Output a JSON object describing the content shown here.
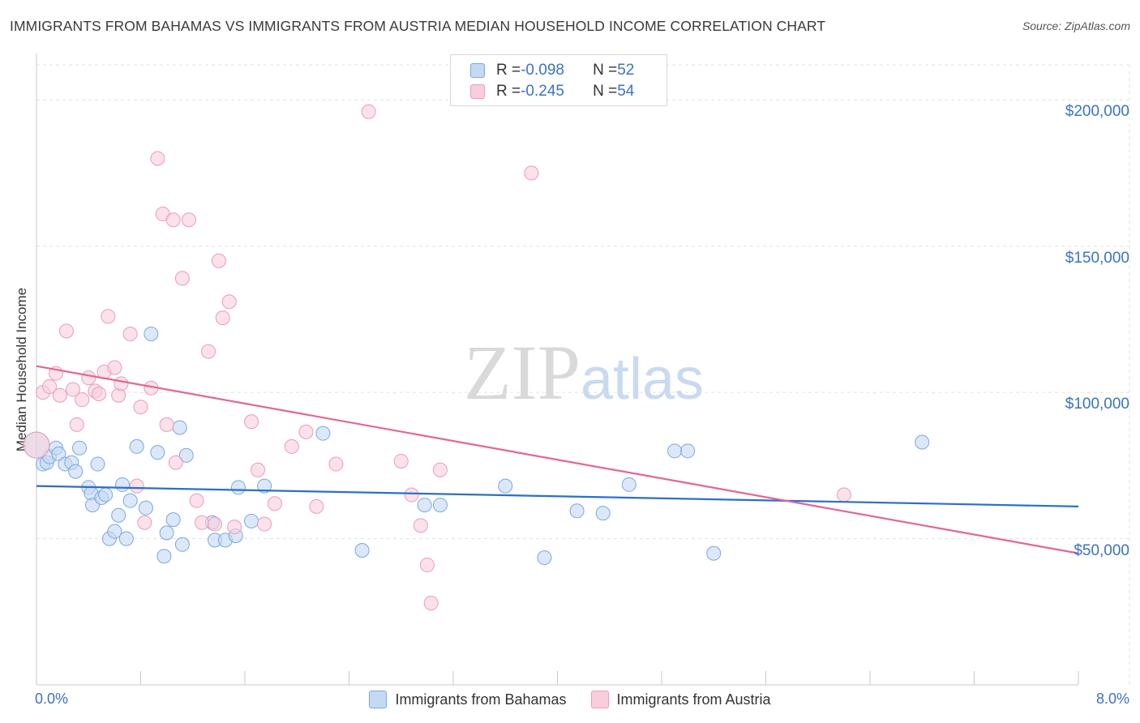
{
  "chart_data": {
    "type": "scatter",
    "title": "IMMIGRANTS FROM BAHAMAS VS IMMIGRANTS FROM AUSTRIA MEDIAN HOUSEHOLD INCOME CORRELATION CHART",
    "source": "Source: ZipAtlas.com",
    "xlabel": "",
    "ylabel": "Median Household Income",
    "xlim": [
      0,
      8
    ],
    "ylim": [
      0,
      212000
    ],
    "x_tick_labels": [
      "0.0%",
      "8.0%"
    ],
    "y_ticks": [
      {
        "value": 50000,
        "label": "$50,000"
      },
      {
        "value": 100000,
        "label": "$100,000"
      },
      {
        "value": 150000,
        "label": "$150,000"
      },
      {
        "value": 200000,
        "label": "$200,000"
      }
    ],
    "grid": true,
    "watermark": "ZIPatlas",
    "legend_stats": [
      {
        "r_label": "R = ",
        "r_value": "-0.098",
        "n_label": "N = ",
        "n_value": "52"
      },
      {
        "r_label": "R = ",
        "r_value": "-0.245",
        "n_label": "N = ",
        "n_value": "54"
      }
    ],
    "series": [
      {
        "name": "Immigrants from Bahamas",
        "color": "#7aa7e0",
        "fill": "#c5d9f3",
        "line_color": "#2a6fcc",
        "trend": {
          "x": [
            0,
            8
          ],
          "y": [
            68000,
            61000
          ]
        },
        "points": [
          [
            0.05,
            75500
          ],
          [
            0.08,
            76000
          ],
          [
            0.1,
            78000
          ],
          [
            0.15,
            81000
          ],
          [
            0.17,
            79000
          ],
          [
            0.22,
            75500
          ],
          [
            0.27,
            76000
          ],
          [
            0.3,
            73000
          ],
          [
            0.33,
            81000
          ],
          [
            0.4,
            67500
          ],
          [
            0.42,
            65500
          ],
          [
            0.43,
            61500
          ],
          [
            0.47,
            75500
          ],
          [
            0.5,
            64000
          ],
          [
            0.53,
            65000
          ],
          [
            0.56,
            50000
          ],
          [
            0.6,
            52500
          ],
          [
            0.63,
            58000
          ],
          [
            0.66,
            68500
          ],
          [
            0.69,
            50000
          ],
          [
            0.72,
            63000
          ],
          [
            0.77,
            81500
          ],
          [
            0.84,
            60500
          ],
          [
            0.88,
            120000
          ],
          [
            0.93,
            79500
          ],
          [
            0.98,
            44000
          ],
          [
            1.0,
            52000
          ],
          [
            1.05,
            56500
          ],
          [
            1.12,
            48000
          ],
          [
            1.15,
            78500
          ],
          [
            1.35,
            55500
          ],
          [
            1.37,
            49500
          ],
          [
            1.45,
            49500
          ],
          [
            1.53,
            51000
          ],
          [
            1.55,
            67500
          ],
          [
            1.65,
            56000
          ],
          [
            1.75,
            68000
          ],
          [
            2.2,
            86000
          ],
          [
            2.5,
            46000
          ],
          [
            2.98,
            61500
          ],
          [
            3.1,
            61500
          ],
          [
            3.6,
            68000
          ],
          [
            3.9,
            43500
          ],
          [
            4.15,
            59500
          ],
          [
            4.35,
            58700
          ],
          [
            4.55,
            68500
          ],
          [
            4.9,
            80000
          ],
          [
            5.0,
            80000
          ],
          [
            5.2,
            45000
          ],
          [
            6.8,
            83000
          ],
          [
            1.1,
            88000
          ],
          [
            0.0,
            82000
          ]
        ]
      },
      {
        "name": "Immigrants from Austria",
        "color": "#ec9bb6",
        "fill": "#f8cedc",
        "line_color": "#e46592",
        "trend": {
          "x": [
            0,
            8
          ],
          "y": [
            109000,
            45000
          ]
        },
        "points": [
          [
            0.0,
            82000
          ],
          [
            0.05,
            100000
          ],
          [
            0.1,
            102000
          ],
          [
            0.15,
            106500
          ],
          [
            0.18,
            99000
          ],
          [
            0.23,
            121000
          ],
          [
            0.28,
            101000
          ],
          [
            0.31,
            89000
          ],
          [
            0.35,
            97500
          ],
          [
            0.4,
            105000
          ],
          [
            0.45,
            100500
          ],
          [
            0.48,
            99500
          ],
          [
            0.52,
            107000
          ],
          [
            0.55,
            126000
          ],
          [
            0.6,
            108500
          ],
          [
            0.63,
            99000
          ],
          [
            0.65,
            103000
          ],
          [
            0.72,
            120000
          ],
          [
            0.77,
            68000
          ],
          [
            0.8,
            95000
          ],
          [
            0.83,
            55500
          ],
          [
            0.88,
            101500
          ],
          [
            0.93,
            180000
          ],
          [
            0.97,
            161000
          ],
          [
            1.0,
            89000
          ],
          [
            1.05,
            159000
          ],
          [
            1.07,
            76000
          ],
          [
            1.12,
            139000
          ],
          [
            1.17,
            159000
          ],
          [
            1.23,
            63000
          ],
          [
            1.27,
            55500
          ],
          [
            1.32,
            114000
          ],
          [
            1.37,
            55000
          ],
          [
            1.4,
            145000
          ],
          [
            1.43,
            125500
          ],
          [
            1.48,
            131000
          ],
          [
            1.52,
            54000
          ],
          [
            1.65,
            90000
          ],
          [
            1.7,
            73500
          ],
          [
            1.75,
            55000
          ],
          [
            1.83,
            62000
          ],
          [
            1.96,
            81500
          ],
          [
            2.07,
            86500
          ],
          [
            2.15,
            61000
          ],
          [
            2.3,
            75500
          ],
          [
            2.55,
            196000
          ],
          [
            2.8,
            76500
          ],
          [
            2.88,
            65000
          ],
          [
            2.95,
            54500
          ],
          [
            3.0,
            41000
          ],
          [
            3.1,
            73500
          ],
          [
            3.8,
            175000
          ],
          [
            6.2,
            65000
          ],
          [
            3.03,
            28000
          ]
        ]
      }
    ]
  }
}
